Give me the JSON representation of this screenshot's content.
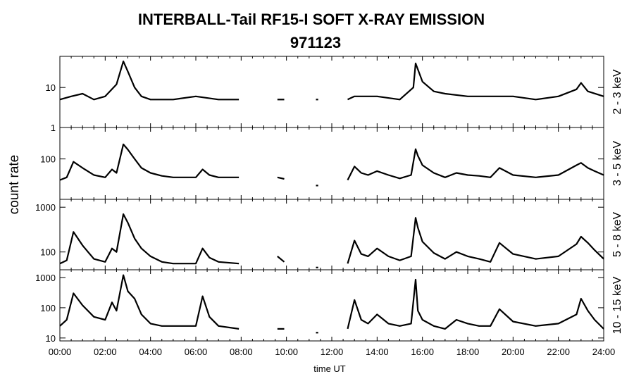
{
  "chart_data": {
    "type": "line",
    "title": "INTERBALL-Tail RF15-I SOFT X-RAY EMISSION",
    "subtitle": "971123",
    "xlabel": "time UT",
    "ylabel": "count rate",
    "x_unit": "hours UT",
    "xlim": [
      0,
      24
    ],
    "x_tick_labels": [
      "00:00",
      "02:00",
      "04:00",
      "06:00",
      "08:00",
      "10:00",
      "12:00",
      "14:00",
      "16:00",
      "18:00",
      "20:00",
      "22:00",
      "24:00"
    ],
    "x_tick_values": [
      0,
      2,
      4,
      6,
      8,
      10,
      12,
      14,
      16,
      18,
      20,
      22,
      24
    ],
    "y_scale": "log",
    "data_gaps_hours": [
      [
        8.0,
        9.5
      ],
      [
        10.1,
        11.2
      ],
      [
        11.5,
        12.6
      ]
    ],
    "panels": [
      {
        "name": "2 - 3 keV",
        "ylim": [
          1,
          60
        ],
        "y_ticks": [
          1,
          10
        ],
        "y_tick_labels": [
          "1",
          "10"
        ],
        "series": [
          {
            "x": [
              0.0,
              0.5,
              1.0,
              1.5,
              2.0,
              2.5,
              2.8,
              3.0,
              3.3,
              3.6,
              4.0,
              5.0,
              6.0,
              7.0,
              7.9,
              9.6,
              9.9,
              11.3,
              11.4,
              12.7,
              13.0,
              14.0,
              15.0,
              15.6,
              15.7,
              16.0,
              16.5,
              17.0,
              18.0,
              19.0,
              20.0,
              21.0,
              22.0,
              22.8,
              23.0,
              23.3,
              24.0
            ],
            "y": [
              5,
              6,
              7,
              5,
              6,
              12,
              45,
              25,
              10,
              6,
              5,
              5,
              6,
              5,
              5,
              5,
              5,
              5,
              5,
              5,
              6,
              6,
              5,
              10,
              40,
              14,
              8,
              7,
              6,
              6,
              6,
              5,
              6,
              9,
              13,
              8,
              6
            ]
          }
        ]
      },
      {
        "name": "3 - 5 keV",
        "ylim": [
          10,
          600
        ],
        "y_ticks": [
          100
        ],
        "y_tick_labels": [
          "100"
        ],
        "series": [
          {
            "x": [
              0.0,
              0.3,
              0.6,
              1.0,
              1.5,
              2.0,
              2.3,
              2.5,
              2.8,
              3.0,
              3.3,
              3.6,
              4.0,
              4.5,
              5.0,
              6.0,
              6.3,
              6.6,
              7.0,
              7.9,
              9.6,
              9.9,
              11.3,
              11.4,
              12.7,
              13.0,
              13.3,
              13.6,
              14.0,
              14.5,
              15.0,
              15.5,
              15.7,
              15.8,
              16.0,
              16.5,
              17.0,
              17.5,
              18.0,
              18.5,
              19.0,
              19.4,
              20.0,
              21.0,
              22.0,
              22.8,
              23.0,
              23.3,
              23.6,
              24.0
            ],
            "y": [
              30,
              35,
              85,
              60,
              40,
              35,
              55,
              45,
              230,
              170,
              100,
              60,
              45,
              38,
              35,
              35,
              55,
              40,
              35,
              35,
              35,
              32,
              22,
              22,
              30,
              65,
              45,
              40,
              50,
              40,
              33,
              40,
              175,
              120,
              70,
              45,
              35,
              45,
              40,
              38,
              35,
              60,
              40,
              35,
              40,
              70,
              80,
              60,
              50,
              40
            ]
          }
        ]
      },
      {
        "name": "5 - 8 keV",
        "ylim": [
          40,
          1500
        ],
        "y_ticks": [
          100,
          1000
        ],
        "y_tick_labels": [
          "100",
          "1000"
        ],
        "series": [
          {
            "x": [
              0.0,
              0.3,
              0.6,
              1.0,
              1.5,
              2.0,
              2.3,
              2.5,
              2.8,
              3.0,
              3.3,
              3.6,
              4.0,
              4.5,
              5.0,
              6.0,
              6.3,
              6.6,
              7.0,
              7.9,
              9.6,
              9.9,
              11.3,
              11.4,
              12.7,
              13.0,
              13.3,
              13.6,
              14.0,
              14.5,
              15.0,
              15.5,
              15.7,
              15.8,
              16.0,
              16.5,
              17.0,
              17.5,
              18.0,
              18.5,
              19.0,
              19.4,
              20.0,
              21.0,
              22.0,
              22.8,
              23.0,
              23.3,
              23.6,
              24.0
            ],
            "y": [
              55,
              65,
              280,
              140,
              70,
              60,
              120,
              100,
              700,
              450,
              200,
              120,
              80,
              60,
              55,
              55,
              120,
              75,
              60,
              55,
              80,
              60,
              45,
              45,
              55,
              180,
              90,
              80,
              120,
              80,
              65,
              80,
              580,
              350,
              170,
              95,
              70,
              100,
              80,
              70,
              60,
              160,
              90,
              70,
              80,
              150,
              220,
              160,
              110,
              70
            ]
          }
        ]
      },
      {
        "name": "10 - 15 keV",
        "ylim": [
          8,
          1800
        ],
        "y_ticks": [
          10,
          100,
          1000
        ],
        "y_tick_labels": [
          "10",
          "100",
          "1000"
        ],
        "series": [
          {
            "x": [
              0.0,
              0.3,
              0.6,
              1.0,
              1.5,
              2.0,
              2.3,
              2.5,
              2.8,
              3.0,
              3.3,
              3.6,
              4.0,
              4.5,
              5.0,
              6.0,
              6.3,
              6.6,
              7.0,
              7.9,
              9.6,
              9.9,
              11.3,
              11.4,
              12.7,
              13.0,
              13.3,
              13.6,
              14.0,
              14.5,
              15.0,
              15.5,
              15.7,
              15.8,
              16.0,
              16.5,
              17.0,
              17.5,
              18.0,
              18.5,
              19.0,
              19.4,
              20.0,
              21.0,
              22.0,
              22.8,
              23.0,
              23.3,
              23.6,
              24.0
            ],
            "y": [
              25,
              40,
              300,
              120,
              50,
              40,
              150,
              80,
              1200,
              350,
              200,
              60,
              30,
              25,
              25,
              25,
              240,
              50,
              25,
              20,
              20,
              20,
              15,
              15,
              20,
              180,
              40,
              30,
              60,
              30,
              25,
              30,
              850,
              80,
              40,
              25,
              20,
              40,
              30,
              25,
              25,
              90,
              35,
              25,
              30,
              60,
              200,
              80,
              40,
              20
            ]
          }
        ]
      }
    ]
  }
}
